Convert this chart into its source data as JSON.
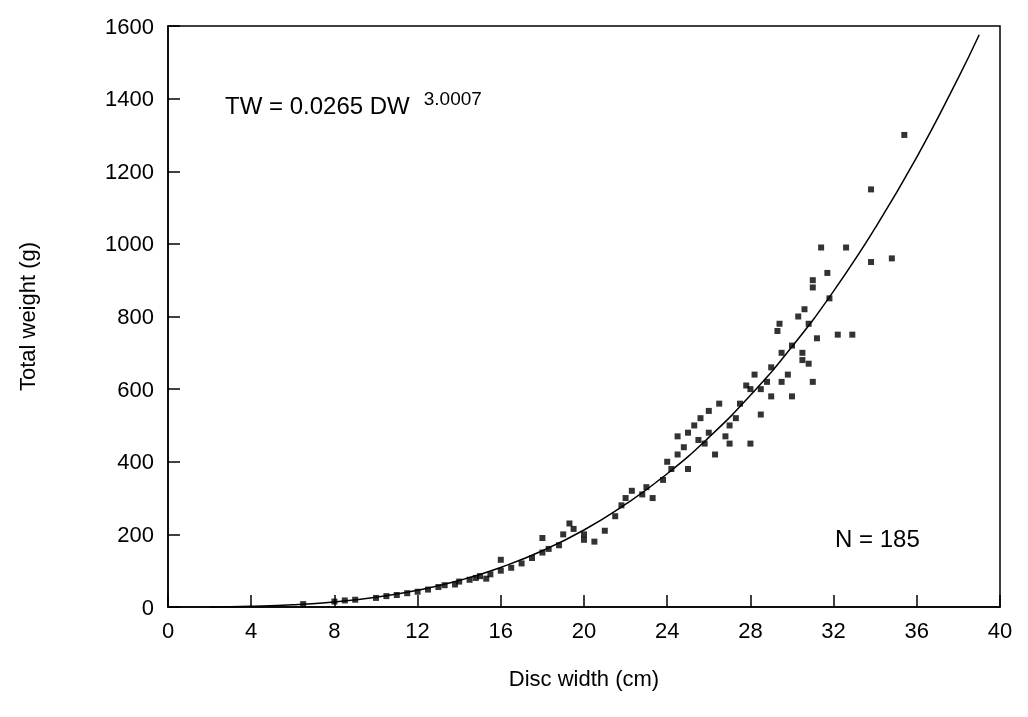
{
  "chart_data": {
    "type": "scatter",
    "xlabel": "Disc width (cm)",
    "ylabel": "Total weight (g)",
    "annotations": [
      "TW = 0.0265 DW$^{3.0007}$",
      "N = 185"
    ],
    "xlim": [
      0,
      40
    ],
    "xticks": [
      0,
      4,
      8,
      12,
      16,
      20,
      24,
      28,
      32,
      36,
      40
    ],
    "ylim": [
      0,
      1600
    ],
    "yticks": [
      0,
      200,
      400,
      600,
      800,
      1000,
      1200,
      1400,
      1600
    ],
    "grid": false,
    "series": [
      {
        "marker": "square",
        "color": "#000000",
        "x": [
          6.5,
          8,
          8.5,
          9,
          10,
          10.5,
          11,
          11.5,
          12,
          12.5,
          13,
          13.3,
          13.8,
          14,
          14.5,
          14.8,
          15,
          15.3,
          15.5,
          16,
          16,
          16.5,
          17,
          17.5,
          18,
          18,
          18.3,
          18.8,
          19,
          19.3,
          19.5,
          20,
          20,
          20.5,
          21,
          21.5,
          21.8,
          22,
          22.3,
          22.8,
          23,
          23.3,
          23.8,
          24,
          24.2,
          24.5,
          24.5,
          24.8,
          25,
          25,
          25.3,
          25.5,
          25.6,
          25.8,
          26,
          26,
          26.3,
          26.5,
          26.8,
          27,
          27,
          27.3,
          27.5,
          27.8,
          28,
          28,
          28.2,
          28.5,
          28.5,
          28.8,
          29,
          29,
          29.3,
          29.4,
          29.5,
          29.5,
          29.8,
          30,
          30,
          30.3,
          30.5,
          30.5,
          30.6,
          30.8,
          30.8,
          31,
          31,
          31.2,
          31,
          31.4,
          31.7,
          31.8,
          32.2,
          32.6,
          32.9,
          33.8,
          33.8,
          34.8,
          35.4
        ],
        "values": [
          8,
          15,
          18,
          20,
          25,
          30,
          33,
          38,
          42,
          48,
          55,
          60,
          62,
          70,
          75,
          80,
          85,
          78,
          90,
          100,
          130,
          108,
          120,
          135,
          150,
          190,
          160,
          170,
          200,
          230,
          215,
          200,
          185,
          180,
          210,
          250,
          280,
          300,
          320,
          310,
          330,
          300,
          350,
          400,
          380,
          470,
          420,
          440,
          480,
          380,
          500,
          460,
          520,
          450,
          540,
          480,
          420,
          560,
          470,
          500,
          450,
          520,
          560,
          610,
          600,
          450,
          640,
          600,
          530,
          620,
          660,
          580,
          760,
          780,
          620,
          700,
          640,
          720,
          580,
          800,
          700,
          680,
          820,
          780,
          670,
          900,
          880,
          740,
          620,
          990,
          920,
          850,
          750,
          990,
          750,
          950,
          1150,
          960,
          1300
        ]
      },
      {
        "type": "line",
        "marker": "none",
        "color": "#000000",
        "x": [
          2,
          4,
          6,
          8,
          10,
          12,
          14,
          16,
          18,
          20,
          22,
          24,
          26,
          28,
          30,
          32,
          34,
          36,
          38,
          39
        ],
        "values": [
          0,
          2,
          6,
          14,
          27,
          46,
          73,
          109,
          155,
          212,
          283,
          367,
          467,
          583,
          717,
          870,
          1044,
          1239,
          1458,
          1576
        ]
      }
    ]
  }
}
